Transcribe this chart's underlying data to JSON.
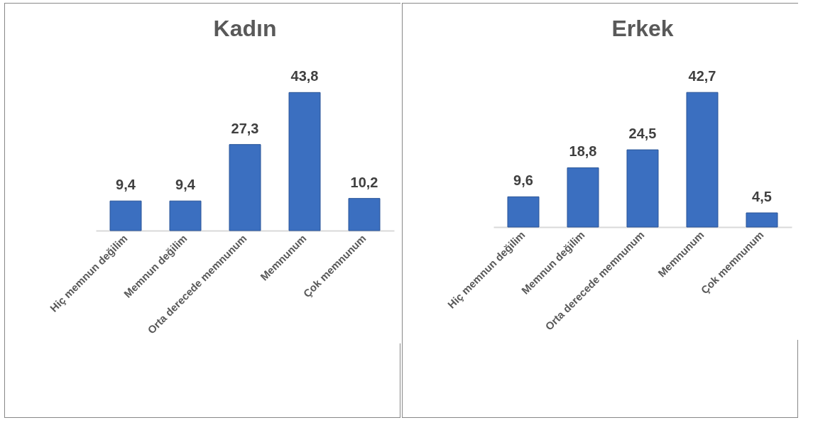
{
  "chart_data": [
    {
      "type": "bar",
      "title": "Kadın",
      "categories": [
        "Hiç memnun değilim",
        "Memnun değilim",
        "Orta derecede memnunum",
        "Memnunum",
        "Çok memnunum"
      ],
      "values": [
        9.4,
        9.4,
        27.3,
        43.8,
        10.2
      ],
      "value_labels": [
        "9,4",
        "9,4",
        "27,3",
        "43,8",
        "10,2"
      ],
      "color": "#3b6fc0",
      "tick_labels": "x",
      "grid": false
    },
    {
      "type": "bar",
      "title": "Erkek",
      "categories": [
        "Hiç memnun değilim",
        "Memnun değilim",
        "Orta derecede memnunum",
        "Memnunum",
        "Çok memnunum"
      ],
      "values": [
        9.6,
        18.8,
        24.5,
        42.7,
        4.5
      ],
      "value_labels": [
        "9,6",
        "18,8",
        "24,5",
        "42,7",
        "4,5"
      ],
      "color": "#3b6fc0",
      "tick_labels": "x",
      "grid": false
    }
  ]
}
